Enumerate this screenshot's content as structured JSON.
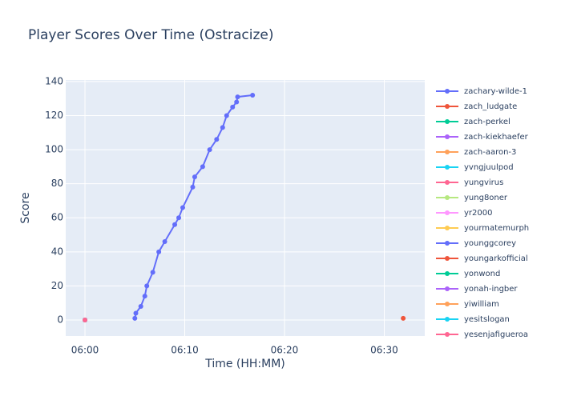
{
  "chart_data": {
    "type": "line",
    "title": "Player Scores Over Time (Ostracize)",
    "x_label": "Time (HH:MM)",
    "y_label": "Score",
    "xlim": [
      358.07,
      394.06
    ],
    "ylim": [
      -9.4,
      140.9
    ],
    "xticks": [
      {
        "value": 360,
        "label": "06:00"
      },
      {
        "value": 370,
        "label": "06:10"
      },
      {
        "value": 380,
        "label": "06:20"
      },
      {
        "value": 390,
        "label": "06:30"
      }
    ],
    "yticks": [
      0,
      20,
      40,
      60,
      80,
      100,
      120,
      140
    ],
    "grid": true,
    "legend": "right",
    "series": [
      {
        "name": "zachary-wilde-1",
        "color": "#636efa",
        "x": [
          365.0,
          365.1,
          365.6,
          366.0,
          366.2,
          366.8,
          367.4,
          368.0,
          369.0,
          369.4,
          369.8,
          370.8,
          371.0,
          371.8,
          372.5,
          373.2,
          373.8,
          374.2,
          374.8,
          375.2,
          375.3,
          376.8
        ],
        "values": [
          1,
          4,
          8,
          14,
          20,
          28,
          40,
          46,
          56,
          60,
          66,
          78,
          84,
          90,
          100,
          106,
          113,
          120,
          125,
          128,
          131,
          132
        ]
      },
      {
        "name": "zach_ludgate",
        "color": "#EF553B",
        "x": [
          391.9
        ],
        "values": [
          1
        ]
      },
      {
        "name": "zach-perkel",
        "color": "#00cc96",
        "x": [
          360
        ],
        "values": [
          0
        ]
      },
      {
        "name": "zach-kiekhaefer",
        "color": "#ab63fa",
        "x": [
          360
        ],
        "values": [
          0
        ]
      },
      {
        "name": "zach-aaron-3",
        "color": "#FFA15A",
        "x": [
          360
        ],
        "values": [
          0
        ]
      },
      {
        "name": "yvngjuulpod",
        "color": "#19d3f3",
        "x": [
          360
        ],
        "values": [
          0
        ]
      },
      {
        "name": "yungvirus",
        "color": "#FF6692",
        "x": [
          360
        ],
        "values": [
          0
        ]
      },
      {
        "name": "yung8oner",
        "color": "#B6E880",
        "x": [
          360
        ],
        "values": [
          0
        ]
      },
      {
        "name": "yr2000",
        "color": "#FF97FF",
        "x": [
          360
        ],
        "values": [
          0
        ]
      },
      {
        "name": "yourmatemurph",
        "color": "#FECB52",
        "x": [
          360
        ],
        "values": [
          0
        ]
      },
      {
        "name": "younggcorey",
        "color": "#636efa",
        "x": [
          360
        ],
        "values": [
          0
        ]
      },
      {
        "name": "youngarkofficial",
        "color": "#EF553B",
        "x": [
          360
        ],
        "values": [
          0
        ]
      },
      {
        "name": "yonwond",
        "color": "#00cc96",
        "x": [
          360
        ],
        "values": [
          0
        ]
      },
      {
        "name": "yonah-ingber",
        "color": "#ab63fa",
        "x": [
          360
        ],
        "values": [
          0
        ]
      },
      {
        "name": "yiwilliam",
        "color": "#FFA15A",
        "x": [
          360
        ],
        "values": [
          0
        ]
      },
      {
        "name": "yesitslogan",
        "color": "#19d3f3",
        "x": [
          360
        ],
        "values": [
          0
        ]
      },
      {
        "name": "yesenjafigueroa",
        "color": "#FF6692",
        "x": [
          360
        ],
        "values": [
          0
        ]
      }
    ]
  }
}
